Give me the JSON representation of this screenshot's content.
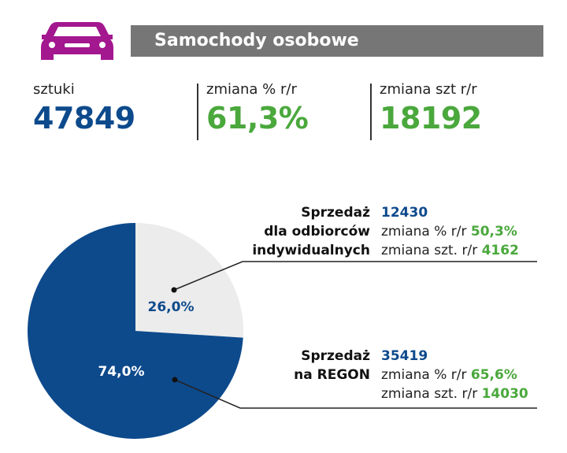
{
  "header": {
    "icon": "car-icon",
    "icon_color": "#a3178f",
    "title": "Samochody osobowe",
    "bar_color": "#767676"
  },
  "stats": [
    {
      "label": "sztuki",
      "value": "47849",
      "color": "#0d4a8c"
    },
    {
      "label": "zmiana % r/r",
      "value": "61,3%",
      "color": "#4aa83c"
    },
    {
      "label": "zmiana szt r/r",
      "value": "18192",
      "color": "#4aa83c"
    }
  ],
  "chart_data": {
    "type": "pie",
    "title": "",
    "slices": [
      {
        "value": 26.0,
        "percent_label": "26,0%",
        "color": "#ececec",
        "label_lines": [
          "Sprzedaż",
          "dla odbiorców",
          "indywidualnych"
        ],
        "count": "12430",
        "change_pct_label": "zmiana % r/r",
        "change_pct": "50,3%",
        "change_units_label": "zmiana szt. r/r",
        "change_units": "4162"
      },
      {
        "value": 74.0,
        "percent_label": "74,0%",
        "color": "#0d4a8c",
        "label_lines": [
          "Sprzedaż",
          "na REGON"
        ],
        "count": "35419",
        "change_pct_label": "zmiana % r/r",
        "change_pct": "65,6%",
        "change_units_label": "zmiana szt. r/r",
        "change_units": "14030"
      }
    ]
  }
}
